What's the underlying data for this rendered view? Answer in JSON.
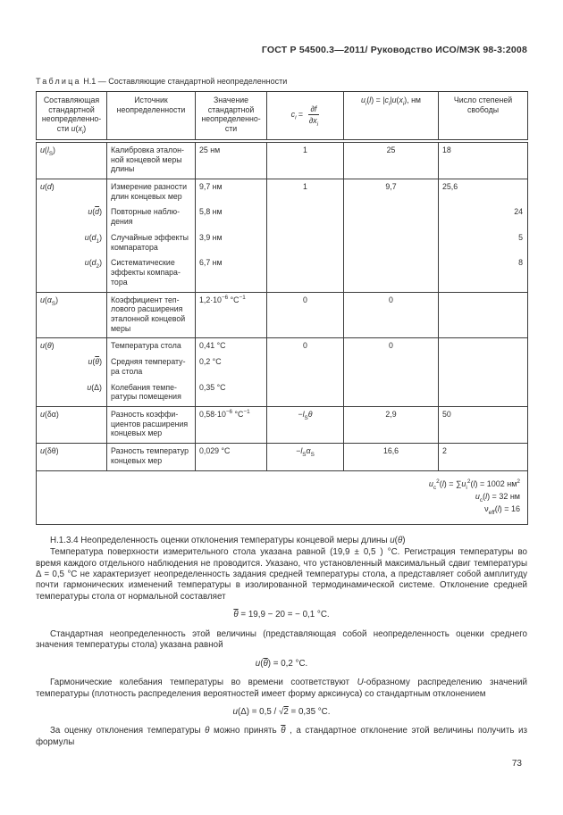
{
  "page": {
    "running_header": "ГОСТ Р 54500.3—2011/ Руководство ИСО/МЭК 98-3:2008",
    "page_number": "73"
  },
  "table": {
    "caption_word": "Таблица",
    "caption_rest": "Н.1 — Составляющие стандартной неопределенности",
    "headers": {
      "h1": "Составляющая стандартной неопределенно&shy;сти <i>u</i>(<i>x</i><sub><i>i</i></sub>)",
      "h2": "Источник неопределенности",
      "h3": "Значение стандартной неопределенно&shy;сти",
      "h4": "<i>c</i><sub><i>i</i></sub> = <span class='frac'><span>∂<i>f</i></span><span>∂<i>x</i><sub><i>i</i></sub></span></span>",
      "h5": "<i>u</i><sub><i>i</i></sub>(<i>l</i>) = |<i>c</i><sub><i>i</i></sub>|<i>u</i>(<i>x</i><sub><i>i</i></sub>), нм",
      "h6": "Число степеней свободы"
    },
    "rows": [
      {
        "c1": "<i>u</i>(<i>l</i><sub>S</sub>)",
        "c2": "Калибровка эталон&shy;ной концевой меры длины",
        "c3": "25 нм",
        "c4": "1",
        "c5": "25",
        "c6": "18"
      },
      {
        "c1": "<i>u</i>(<i>d</i>)",
        "c2": "Измерение разно&shy;сти длин концевых мер",
        "c3": "9,7 нм",
        "c4": "1",
        "c5": "9,7",
        "c6": "25,6"
      },
      {
        "c1": "<i>u</i>(<span class='ov'><i>d</i></span>)",
        "c2": "Повторные наблю&shy;дения",
        "c3": "5,8 нм",
        "c4": "",
        "c5": "",
        "c6": "24"
      },
      {
        "c1": "<i>u</i>(<i>d</i><sub>1</sub>)",
        "c2": "Случайные эффек&shy;ты компаратора",
        "c3": "3,9 нм",
        "c4": "",
        "c5": "",
        "c6": "5"
      },
      {
        "c1": "<i>u</i>(<i>d</i><sub>2</sub>)",
        "c2": "Систематические эффекты компара&shy;тора",
        "c3": "6,7 нм",
        "c4": "",
        "c5": "",
        "c6": "8"
      },
      {
        "c1": "<i>u</i>(<i>α</i><sub>S</sub>)",
        "c2": "Коэффициент теп&shy;лового расширения эталонной концевой меры",
        "c3": "1,2·10<sup>−6</sup> °С<sup>−1</sup>",
        "c4": "0",
        "c5": "0",
        "c6": ""
      },
      {
        "c1": "<i>u</i>(<i>θ</i>)",
        "c2": "Температура стола",
        "c3": "0,41 °С",
        "c4": "0",
        "c5": "0",
        "c6": ""
      },
      {
        "c1": "<i>u</i>(<span class='ov'><i>θ</i></span>)",
        "c2": "Средняя температу&shy;ра стола",
        "c3": "0,2 °С",
        "c4": "",
        "c5": "",
        "c6": ""
      },
      {
        "c1": "<i>u</i>(Δ)",
        "c2": "Колебания темпе&shy;ратуры помещения",
        "c3": "0,35 °С",
        "c4": "",
        "c5": "",
        "c6": ""
      },
      {
        "c1": "<i>u</i>(δα)",
        "c2": "Разность коэффи&shy;циентов расшире&shy;ния концевых мер",
        "c3": "0,58·10<sup>−6</sup> °С<sup>−1</sup>",
        "c4": "−<i>l</i><sub>S</sub><i>θ</i>",
        "c5": "2,9",
        "c6": "50"
      },
      {
        "c1": "<i>u</i>(δθ)",
        "c2": "Разность темпера&shy;тур концевых мер",
        "c3": "0,029 °С",
        "c4": "−<i>l</i><sub>S</sub><i>α</i><sub>S</sub>",
        "c5": "16,6",
        "c6": "2"
      }
    ],
    "footer": {
      "line1": "<i>u</i><sub>c</sub><sup>2</sup>(<i>l</i>) = ∑<i>u</i><sub>i</sub><sup>2</sup>(<i>l</i>) = 1002 нм<sup>2</sup>",
      "line2": "<i>u</i><sub>c</sub>(<i>l</i>) = 32 нм",
      "line3": "ν<sub>eff</sub>(<i>l</i>) = 16"
    }
  },
  "section": {
    "heading": "Н.1.3.4 Неопределенность оценки отклонения температуры концевой меры длины <i>u</i>(<i>θ</i>)",
    "para1": "Температура поверхности измерительного стола указана равной (19,9 ± 0,5 ) °С. Регистрация температуры во время каждого отдельного наблюдения не проводится. Указано, что установленный максимальный сдвиг тем&shy;пературы Δ = 0,5 °С не характеризует неопределенность задания средней температуры стола, а представляет собой амплитуду почти гармонических изменений температуры в изолированной термодинамической системе. Отклонение средней температуры стола от нормальной составляет",
    "formula1": "<span class='ov'><i>θ</i></span> = 19,9 − 20 = − 0,1 °С.",
    "para2": "Стандартная неопределенность этой величины (представляющая собой неопределенность оценки сред&shy;него значения температуры стола) указана равной",
    "formula2": "<i>u</i>(<span class='ov'><i>θ</i></span>) = 0,2 °С.",
    "para3": "Гармонические колебания температуры во времени соответствуют <i>U</i>-образному распределению значений температуры (плотность распределения вероятностей имеет форму арксинуса) со стандартным отклонением",
    "formula3": "<i>u</i>(Δ) = 0,5 / √<span class='ov'>2</span> = 0,35 °С.",
    "para4": "За оценку отклонения температуры <i>θ</i> можно принять <span class='ov'><i>θ</i></span> , а стандартное отклонение этой величины получить из формулы"
  }
}
